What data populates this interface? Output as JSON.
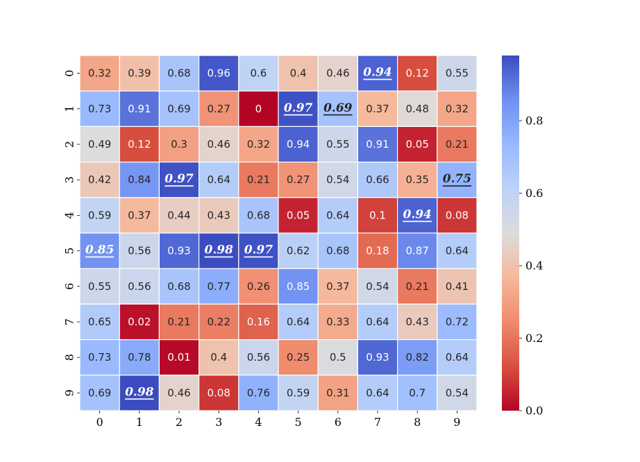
{
  "chart_data": {
    "type": "heatmap",
    "title": "",
    "xlabel": "",
    "ylabel": "",
    "x_categories": [
      "0",
      "1",
      "2",
      "3",
      "4",
      "5",
      "6",
      "7",
      "8",
      "9"
    ],
    "y_categories": [
      "0",
      "1",
      "2",
      "3",
      "4",
      "5",
      "6",
      "7",
      "8",
      "9"
    ],
    "values": [
      [
        0.32,
        0.39,
        0.68,
        0.96,
        0.6,
        0.4,
        0.46,
        0.94,
        0.12,
        0.55
      ],
      [
        0.73,
        0.91,
        0.69,
        0.27,
        0,
        0.97,
        0.69,
        0.37,
        0.48,
        0.32
      ],
      [
        0.49,
        0.12,
        0.3,
        0.46,
        0.32,
        0.94,
        0.55,
        0.91,
        0.05,
        0.21
      ],
      [
        0.42,
        0.84,
        0.97,
        0.64,
        0.21,
        0.27,
        0.54,
        0.66,
        0.35,
        0.75
      ],
      [
        0.59,
        0.37,
        0.44,
        0.43,
        0.68,
        0.05,
        0.64,
        0.1,
        0.94,
        0.08
      ],
      [
        0.85,
        0.56,
        0.93,
        0.98,
        0.97,
        0.62,
        0.68,
        0.18,
        0.87,
        0.64
      ],
      [
        0.55,
        0.56,
        0.68,
        0.77,
        0.26,
        0.85,
        0.37,
        0.54,
        0.21,
        0.41
      ],
      [
        0.65,
        0.02,
        0.21,
        0.22,
        0.16,
        0.64,
        0.33,
        0.64,
        0.43,
        0.72
      ],
      [
        0.73,
        0.78,
        0.01,
        0.4,
        0.56,
        0.25,
        0.5,
        0.93,
        0.82,
        0.64
      ],
      [
        0.69,
        0.98,
        0.46,
        0.08,
        0.76,
        0.59,
        0.31,
        0.64,
        0.7,
        0.54
      ]
    ],
    "highlighted": [
      [
        0,
        7
      ],
      [
        1,
        5
      ],
      [
        1,
        6
      ],
      [
        3,
        2
      ],
      [
        3,
        9
      ],
      [
        4,
        8
      ],
      [
        5,
        0
      ],
      [
        5,
        3
      ],
      [
        5,
        4
      ],
      [
        9,
        1
      ]
    ],
    "colormap": "coolwarm_r",
    "colormap_stops": [
      "#b40426",
      "#dddcdc",
      "#3b4cc0"
    ],
    "vmin": 0,
    "vmax": 0.98,
    "colorbar": {
      "ticks": [
        0.0,
        0.2,
        0.4,
        0.6,
        0.8
      ],
      "tick_labels": [
        "0.0",
        "0.2",
        "0.4",
        "0.6",
        "0.8"
      ]
    }
  }
}
